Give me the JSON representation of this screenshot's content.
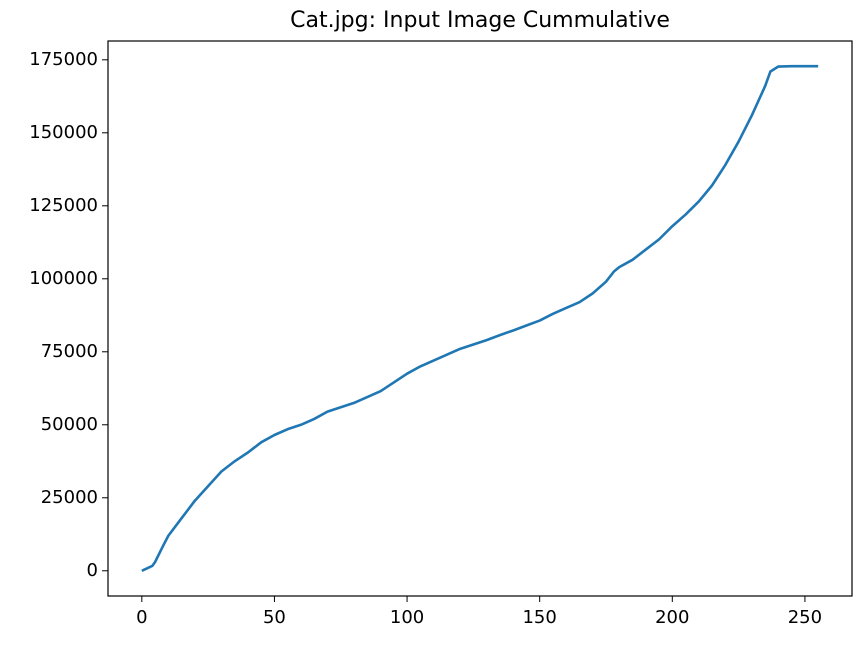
{
  "chart_data": {
    "type": "line",
    "title": "Cat.jpg: Input Image Cummulative",
    "x": [
      0,
      4,
      5,
      8,
      10,
      15,
      20,
      25,
      30,
      35,
      40,
      45,
      50,
      55,
      60,
      65,
      70,
      75,
      80,
      85,
      90,
      95,
      100,
      105,
      110,
      115,
      120,
      125,
      130,
      135,
      140,
      145,
      150,
      155,
      160,
      165,
      170,
      175,
      178,
      180,
      185,
      190,
      195,
      200,
      205,
      210,
      215,
      220,
      225,
      230,
      235,
      237,
      240,
      245,
      250,
      255
    ],
    "series": [
      {
        "color": "#1f77b4",
        "values": [
          0,
          1700,
          3000,
          8500,
          12000,
          18000,
          24000,
          29000,
          34000,
          37500,
          40500,
          44000,
          46500,
          48500,
          50000,
          52000,
          54500,
          56000,
          57500,
          59500,
          61500,
          64500,
          67500,
          70000,
          72000,
          74000,
          76000,
          77500,
          79000,
          80700,
          82300,
          84000,
          85700,
          88000,
          90000,
          92000,
          95000,
          99000,
          102500,
          104000,
          106500,
          110000,
          113500,
          118000,
          122000,
          126500,
          132000,
          139000,
          147000,
          156000,
          166000,
          171000,
          172700,
          172800,
          172800,
          172800
        ]
      }
    ],
    "xlim": [
      -12.75,
      267.75
    ],
    "xticks": [
      0,
      50,
      100,
      150,
      200,
      250
    ],
    "ylim": [
      -8640,
      181440
    ],
    "yticks": [
      0,
      25000,
      50000,
      75000,
      100000,
      125000,
      150000,
      175000
    ],
    "grid": false
  }
}
